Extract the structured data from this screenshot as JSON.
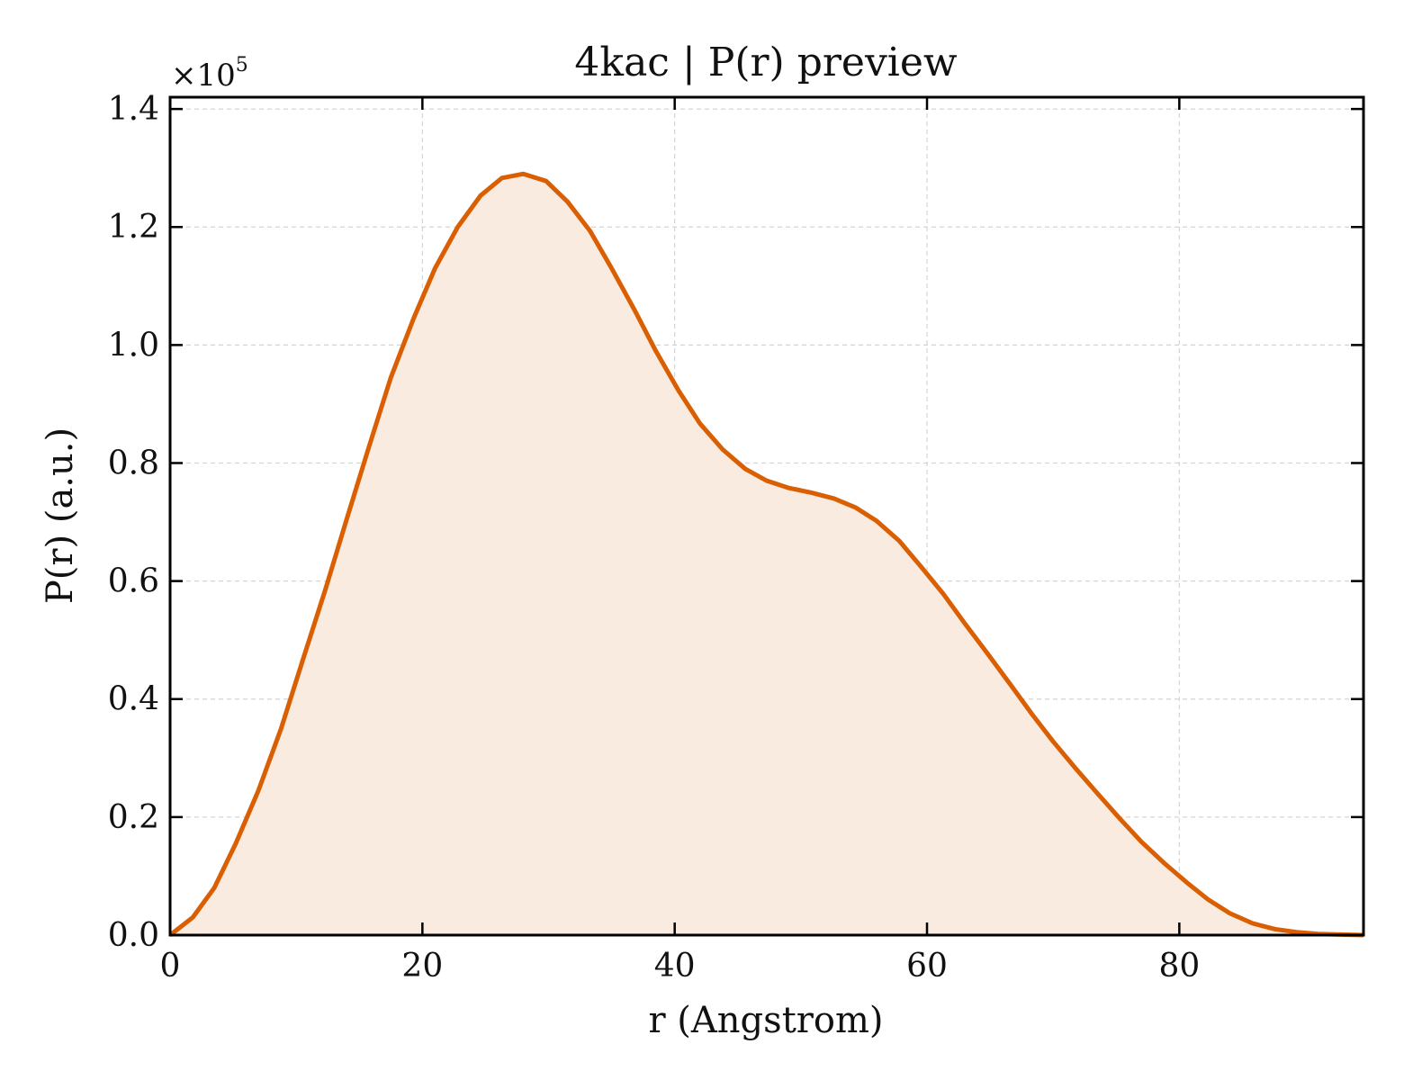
{
  "chart_data": {
    "type": "area",
    "title": "4kac | P(r) preview",
    "xlabel": "r (Angstrom)",
    "ylabel": "P(r) (a.u.)",
    "y_offset_base": "×10",
    "y_offset_exponent": "5",
    "xlim": [
      0,
      94.6
    ],
    "ylim": [
      0,
      1.42
    ],
    "x_ticks": [
      0,
      20,
      40,
      60,
      80
    ],
    "x_tick_labels": [
      "0",
      "20",
      "40",
      "60",
      "80"
    ],
    "y_ticks": [
      0,
      0.2,
      0.4,
      0.6,
      0.8,
      1.0,
      1.2,
      1.4
    ],
    "y_tick_labels": [
      "0.0",
      "0.2",
      "0.4",
      "0.6",
      "0.8",
      "1.0",
      "1.2",
      "1.4"
    ],
    "grid": true,
    "line_color": "#d95f02",
    "fill_color": "#f9ebe0",
    "series": [
      {
        "x": [
          0,
          1.8,
          3.5,
          5.2,
          7.0,
          8.8,
          10.5,
          12.3,
          14.0,
          15.8,
          17.5,
          19.3,
          21.0,
          22.8,
          24.6,
          26.3,
          28.0,
          29.8,
          31.5,
          33.3,
          35.0,
          36.8,
          38.5,
          40.3,
          42.0,
          43.8,
          45.6,
          47.3,
          49.0,
          50.8,
          52.6,
          54.3,
          56.0,
          57.8,
          59.5,
          61.3,
          63.0,
          64.8,
          66.6,
          68.3,
          70.0,
          71.8,
          73.6,
          75.3,
          77.0,
          78.8,
          80.6,
          82.3,
          84.0,
          85.8,
          87.6,
          89.3,
          91.0,
          92.8,
          94.6
        ],
        "y": [
          0.0,
          0.03,
          0.08,
          0.155,
          0.245,
          0.35,
          0.465,
          0.585,
          0.705,
          0.83,
          0.945,
          1.045,
          1.13,
          1.2,
          1.253,
          1.283,
          1.29,
          1.278,
          1.243,
          1.193,
          1.13,
          1.06,
          0.99,
          0.923,
          0.867,
          0.823,
          0.79,
          0.77,
          0.758,
          0.75,
          0.74,
          0.725,
          0.702,
          0.668,
          0.625,
          0.578,
          0.528,
          0.477,
          0.425,
          0.375,
          0.328,
          0.282,
          0.238,
          0.197,
          0.158,
          0.122,
          0.089,
          0.06,
          0.037,
          0.02,
          0.01,
          0.005,
          0.002,
          0.001,
          0.0
        ]
      }
    ]
  }
}
